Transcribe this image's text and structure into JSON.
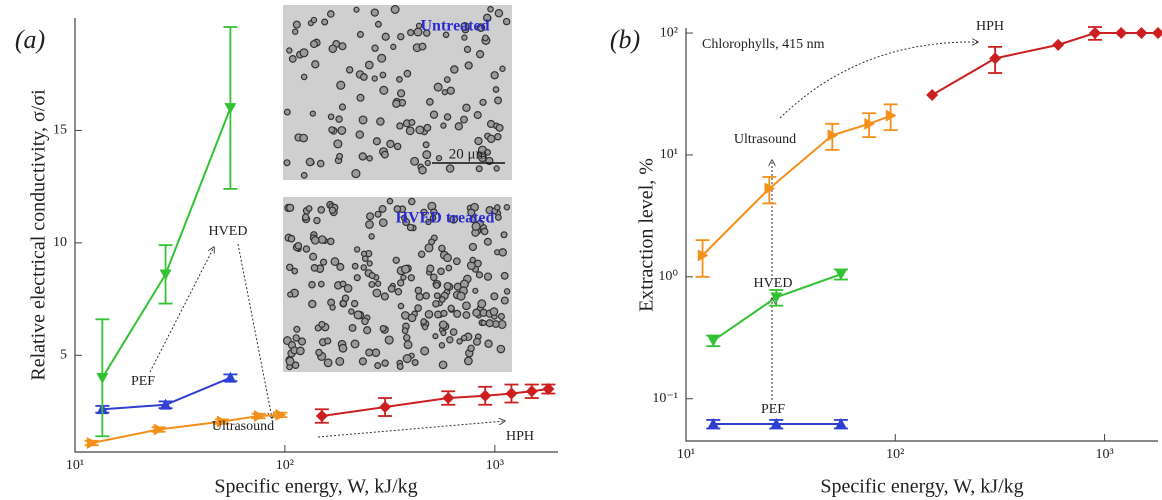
{
  "chart_data": [
    {
      "type": "line",
      "panel": "(a)",
      "x_label": "Specific energy, W, kJ/kg",
      "y_label": "Relative electrical conductivity, σ/σi",
      "xscale": "log",
      "xlim": [
        10,
        2000
      ],
      "xticks": [
        {
          "value": 10,
          "label": "10¹"
        },
        {
          "value": 100,
          "label": "10²"
        },
        {
          "value": 1000,
          "label": "10³"
        }
      ],
      "ylim": [
        0.7,
        20
      ],
      "yticks": [
        5,
        10,
        15
      ],
      "insets": [
        {
          "label": "Untreated",
          "scale_bar": "20 μm"
        },
        {
          "label": "HVED treated"
        }
      ],
      "series": [
        {
          "name": "PEF",
          "color": "#2f3fd0",
          "marker": "triangle-up",
          "x": [
            13.5,
            27,
            55
          ],
          "values": [
            2.6,
            2.8,
            4.0
          ],
          "errors": [
            0.15,
            0.15,
            0.15
          ]
        },
        {
          "name": "HVED",
          "color": "#33c233",
          "marker": "triangle-down",
          "x": [
            13.5,
            27,
            55
          ],
          "values": [
            4.0,
            8.6,
            16.0
          ],
          "errors": [
            2.6,
            1.3,
            3.6
          ]
        },
        {
          "name": "Ultrasound",
          "color": "#f39019",
          "marker": "triangle-right",
          "x": [
            12,
            25,
            50,
            75,
            95
          ],
          "values": [
            1.1,
            1.7,
            2.05,
            2.3,
            2.35
          ],
          "errors": [
            0.1,
            0.1,
            0.1,
            0.1,
            0.1
          ]
        },
        {
          "name": "HPH",
          "color": "#cc1f1f",
          "marker": "diamond",
          "x": [
            150,
            300,
            600,
            900,
            1200,
            1500,
            1800
          ],
          "values": [
            2.3,
            2.7,
            3.1,
            3.2,
            3.3,
            3.4,
            3.5
          ],
          "errors": [
            0.3,
            0.4,
            0.3,
            0.4,
            0.4,
            0.3,
            0.2
          ]
        }
      ]
    },
    {
      "type": "line",
      "panel": "(b)",
      "subtitle": "Chlorophylls, 415 nm",
      "x_label": "Specific energy, W, kJ/kg",
      "y_label": "Extraction level, %",
      "xscale": "log",
      "xlim": [
        10,
        1800
      ],
      "xticks": [
        {
          "value": 10,
          "label": "10¹"
        },
        {
          "value": 100,
          "label": "10²"
        },
        {
          "value": 1000,
          "label": "10³"
        }
      ],
      "yscale": "log",
      "ylim": [
        0.045,
        110
      ],
      "yticks": [
        {
          "value": 0.1,
          "label": "10⁻¹"
        },
        {
          "value": 1,
          "label": "10⁰"
        },
        {
          "value": 10,
          "label": "10¹"
        },
        {
          "value": 100,
          "label": "10²"
        }
      ],
      "series": [
        {
          "name": "PEF",
          "color": "#2f3fd0",
          "marker": "triangle-up",
          "x": [
            13.5,
            27,
            55
          ],
          "values": [
            0.062,
            0.062,
            0.062
          ],
          "errors": [
            0.005,
            0.005,
            0.005
          ]
        },
        {
          "name": "HVED",
          "color": "#33c233",
          "marker": "triangle-down",
          "x": [
            13.5,
            27,
            55
          ],
          "values": [
            0.3,
            0.68,
            1.05
          ],
          "errors": [
            0.03,
            0.1,
            0.1
          ]
        },
        {
          "name": "Ultrasound",
          "color": "#f39019",
          "marker": "triangle-right",
          "x": [
            12,
            25,
            50,
            75,
            95
          ],
          "values": [
            1.5,
            5.3,
            14.5,
            18,
            21
          ],
          "errors": [
            0.5,
            1.3,
            3.5,
            4,
            5
          ]
        },
        {
          "name": "HPH",
          "color": "#cc1f1f",
          "marker": "diamond",
          "x": [
            150,
            300,
            600,
            900,
            1200,
            1500,
            1800
          ],
          "values": [
            31,
            62,
            80,
            100,
            100,
            100,
            100
          ],
          "errors": [
            null,
            15,
            null,
            12,
            null,
            null,
            null
          ]
        }
      ]
    }
  ]
}
